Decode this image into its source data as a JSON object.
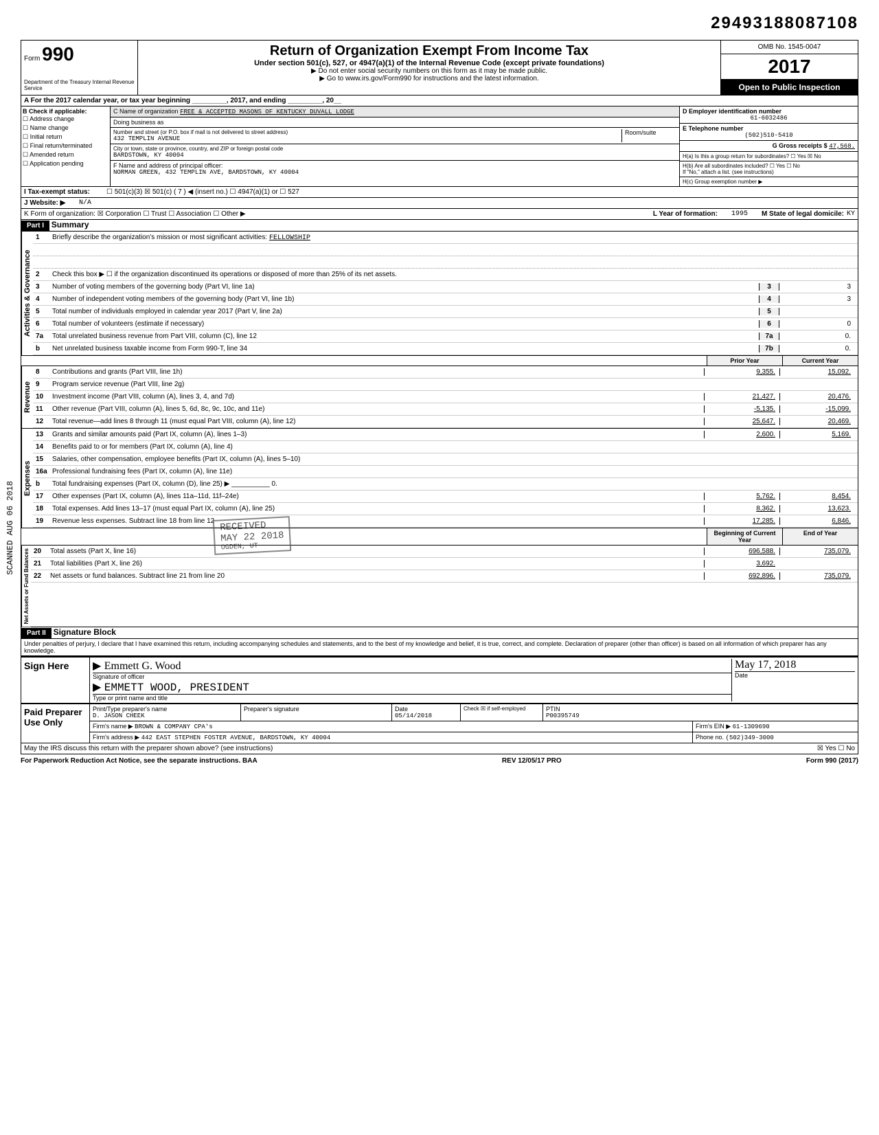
{
  "page_number": "29493188087108",
  "header": {
    "form_label": "Form",
    "form_number": "990",
    "dept": "Department of the Treasury\nInternal Revenue Service",
    "title": "Return of Organization Exempt From Income Tax",
    "subtitle": "Under section 501(c), 527, or 4947(a)(1) of the Internal Revenue Code (except private foundations)",
    "note1": "▶ Do not enter social security numbers on this form as it may be made public.",
    "note2": "▶ Go to www.irs.gov/Form990 for instructions and the latest information.",
    "omb": "OMB No. 1545-0047",
    "year": "2017",
    "open": "Open to Public Inspection"
  },
  "row_a": "A  For the 2017 calendar year, or tax year beginning _________, 2017, and ending _________, 20__",
  "section_b": {
    "label": "B  Check if applicable:",
    "items": [
      "Address change",
      "Name change",
      "Initial return",
      "Final return/terminated",
      "Amended return",
      "Application pending"
    ]
  },
  "section_c": {
    "name_label": "C Name of organization",
    "name": "FREE & ACCEPTED MASONS OF KENTUCKY DUVALL LODGE",
    "dba_label": "Doing business as",
    "addr_label": "Number and street (or P.O. box if mail is not delivered to street address)",
    "room_label": "Room/suite",
    "addr": "432 TEMPLIN AVENUE",
    "city_label": "City or town, state or province, country, and ZIP or foreign postal code",
    "city": "BARDSTOWN, KY 40004",
    "f_label": "F Name and address of principal officer:",
    "f_name": "NORMAN GREEN, 432 TEMPLIN AVE, BARDSTOWN, KY 40004"
  },
  "section_d": {
    "ein_label": "D Employer identification number",
    "ein": "61-6032486",
    "tel_label": "E Telephone number",
    "tel": "(502)510-5410",
    "gross_label": "G Gross receipts $",
    "gross": "47,568.",
    "ha": "H(a) Is this a group return for subordinates? ☐ Yes ☒ No",
    "hb": "H(b) Are all subordinates included? ☐ Yes ☐ No",
    "hb_note": "If \"No,\" attach a list. (see instructions)",
    "hc": "H(c) Group exemption number ▶"
  },
  "row_i": {
    "label": "I  Tax-exempt status:",
    "opts": "☐ 501(c)(3)   ☒ 501(c) (   7  ) ◀ (insert no.)  ☐ 4947(a)(1) or  ☐ 527"
  },
  "row_j": {
    "label": "J  Website: ▶",
    "val": "N/A"
  },
  "row_k": {
    "label": "K  Form of organization: ☒ Corporation ☐ Trust ☐ Association ☐ Other ▶",
    "l_label": "L Year of formation:",
    "l_val": "1995",
    "m_label": "M State of legal domicile:",
    "m_val": "KY"
  },
  "part1": {
    "header": "Part I",
    "title": "Summary"
  },
  "governance": {
    "side": "Activities & Governance",
    "lines": [
      {
        "n": "1",
        "d": "Briefly describe the organization's mission or most significant activities:",
        "v": "FELLOWSHIP"
      },
      {
        "n": "2",
        "d": "Check this box ▶ ☐ if the organization discontinued its operations or disposed of more than 25% of its net assets."
      },
      {
        "n": "3",
        "d": "Number of voting members of the governing body (Part VI, line 1a)",
        "box": "3",
        "v": "3"
      },
      {
        "n": "4",
        "d": "Number of independent voting members of the governing body (Part VI, line 1b)",
        "box": "4",
        "v": "3"
      },
      {
        "n": "5",
        "d": "Total number of individuals employed in calendar year 2017 (Part V, line 2a)",
        "box": "5",
        "v": ""
      },
      {
        "n": "6",
        "d": "Total number of volunteers (estimate if necessary)",
        "box": "6",
        "v": "0"
      },
      {
        "n": "7a",
        "d": "Total unrelated business revenue from Part VIII, column (C), line 12",
        "box": "7a",
        "v": "0."
      },
      {
        "n": "b",
        "d": "Net unrelated business taxable income from Form 990-T, line 34",
        "box": "7b",
        "v": "0."
      }
    ]
  },
  "col_headers": {
    "prior": "Prior Year",
    "current": "Current Year"
  },
  "revenue": {
    "side": "Revenue",
    "lines": [
      {
        "n": "8",
        "d": "Contributions and grants (Part VIII, line 1h)",
        "p": "9,355.",
        "c": "15,092."
      },
      {
        "n": "9",
        "d": "Program service revenue (Part VIII, line 2g)",
        "p": "",
        "c": ""
      },
      {
        "n": "10",
        "d": "Investment income (Part VIII, column (A), lines 3, 4, and 7d)",
        "p": "21,427.",
        "c": "20,476."
      },
      {
        "n": "11",
        "d": "Other revenue (Part VIII, column (A), lines 5, 6d, 8c, 9c, 10c, and 11e)",
        "p": "-5,135.",
        "c": "-15,099."
      },
      {
        "n": "12",
        "d": "Total revenue—add lines 8 through 11 (must equal Part VIII, column (A), line 12)",
        "p": "25,647.",
        "c": "20,469."
      }
    ]
  },
  "expenses": {
    "side": "Expenses",
    "lines": [
      {
        "n": "13",
        "d": "Grants and similar amounts paid (Part IX, column (A), lines 1–3)",
        "p": "2,600.",
        "c": "5,169."
      },
      {
        "n": "14",
        "d": "Benefits paid to or for members (Part IX, column (A), line 4)",
        "p": "",
        "c": ""
      },
      {
        "n": "15",
        "d": "Salaries, other compensation, employee benefits (Part IX, column (A), lines 5–10)",
        "p": "",
        "c": ""
      },
      {
        "n": "16a",
        "d": "Professional fundraising fees (Part IX, column (A), line 11e)",
        "p": "",
        "c": ""
      },
      {
        "n": "b",
        "d": "Total fundraising expenses (Part IX, column (D), line 25) ▶ __________ 0.",
        "p": "",
        "c": ""
      },
      {
        "n": "17",
        "d": "Other expenses (Part IX, column (A), lines 11a–11d, 11f–24e)",
        "p": "5,762.",
        "c": "8,454."
      },
      {
        "n": "18",
        "d": "Total expenses. Add lines 13–17 (must equal Part IX, column (A), line 25)",
        "p": "8,362.",
        "c": "13,623."
      },
      {
        "n": "19",
        "d": "Revenue less expenses. Subtract line 18 from line 12",
        "p": "17,285.",
        "c": "6,846."
      }
    ]
  },
  "col_headers2": {
    "prior": "Beginning of Current Year",
    "current": "End of Year"
  },
  "netassets": {
    "side": "Net Assets or Fund Balances",
    "lines": [
      {
        "n": "20",
        "d": "Total assets (Part X, line 16)",
        "p": "696,588.",
        "c": "735,079."
      },
      {
        "n": "21",
        "d": "Total liabilities (Part X, line 26)",
        "p": "3,692.",
        "c": ""
      },
      {
        "n": "22",
        "d": "Net assets or fund balances. Subtract line 21 from line 20",
        "p": "692,896.",
        "c": "735,079."
      }
    ]
  },
  "stamp1": "RECEIVED",
  "stamp2": "MAY 22 2018",
  "stamp3": "OGDEN, UT",
  "part2": {
    "header": "Part II",
    "title": "Signature Block"
  },
  "sig_declaration": "Under penalties of perjury, I declare that I have examined this return, including accompanying schedules and statements, and to the best of my knowledge and belief, it is true, correct, and complete. Declaration of preparer (other than officer) is based on all information of which preparer has any knowledge.",
  "sign": {
    "label": "Sign Here",
    "sig_label": "Signature of officer",
    "sig_handwrite": "Emmett G. Wood",
    "date_label": "Date",
    "date_val": "May 17, 2018",
    "name_label": "Type or print name and title",
    "name": "EMMETT WOOD, PRESIDENT"
  },
  "paid": {
    "label": "Paid Preparer Use Only",
    "print_label": "Print/Type preparer's name",
    "print_name": "D. JASON CHEEK",
    "sig_label": "Preparer's signature",
    "date_label": "Date",
    "date": "05/14/2018",
    "check": "Check ☒ if self-employed",
    "ptin_label": "PTIN",
    "ptin": "P00395749",
    "firm_label": "Firm's name ▶",
    "firm": "BROWN & COMPANY CPA's",
    "ein_label": "Firm's EIN ▶",
    "ein": "61-1309690",
    "addr_label": "Firm's address ▶",
    "addr": "442 EAST STEPHEN FOSTER AVENUE, BARDSTOWN, KY 40004",
    "phone_label": "Phone no.",
    "phone": "(502)349-3000"
  },
  "discuss": "May the IRS discuss this return with the preparer shown above? (see instructions)",
  "discuss_ans": "☒ Yes ☐ No",
  "footer": {
    "left": "For Paperwork Reduction Act Notice, see the separate instructions.  BAA",
    "mid": "REV 12/05/17 PRO",
    "right": "Form 990 (2017)"
  },
  "vertical_stamp": "SCANNED AUG 06 2018"
}
